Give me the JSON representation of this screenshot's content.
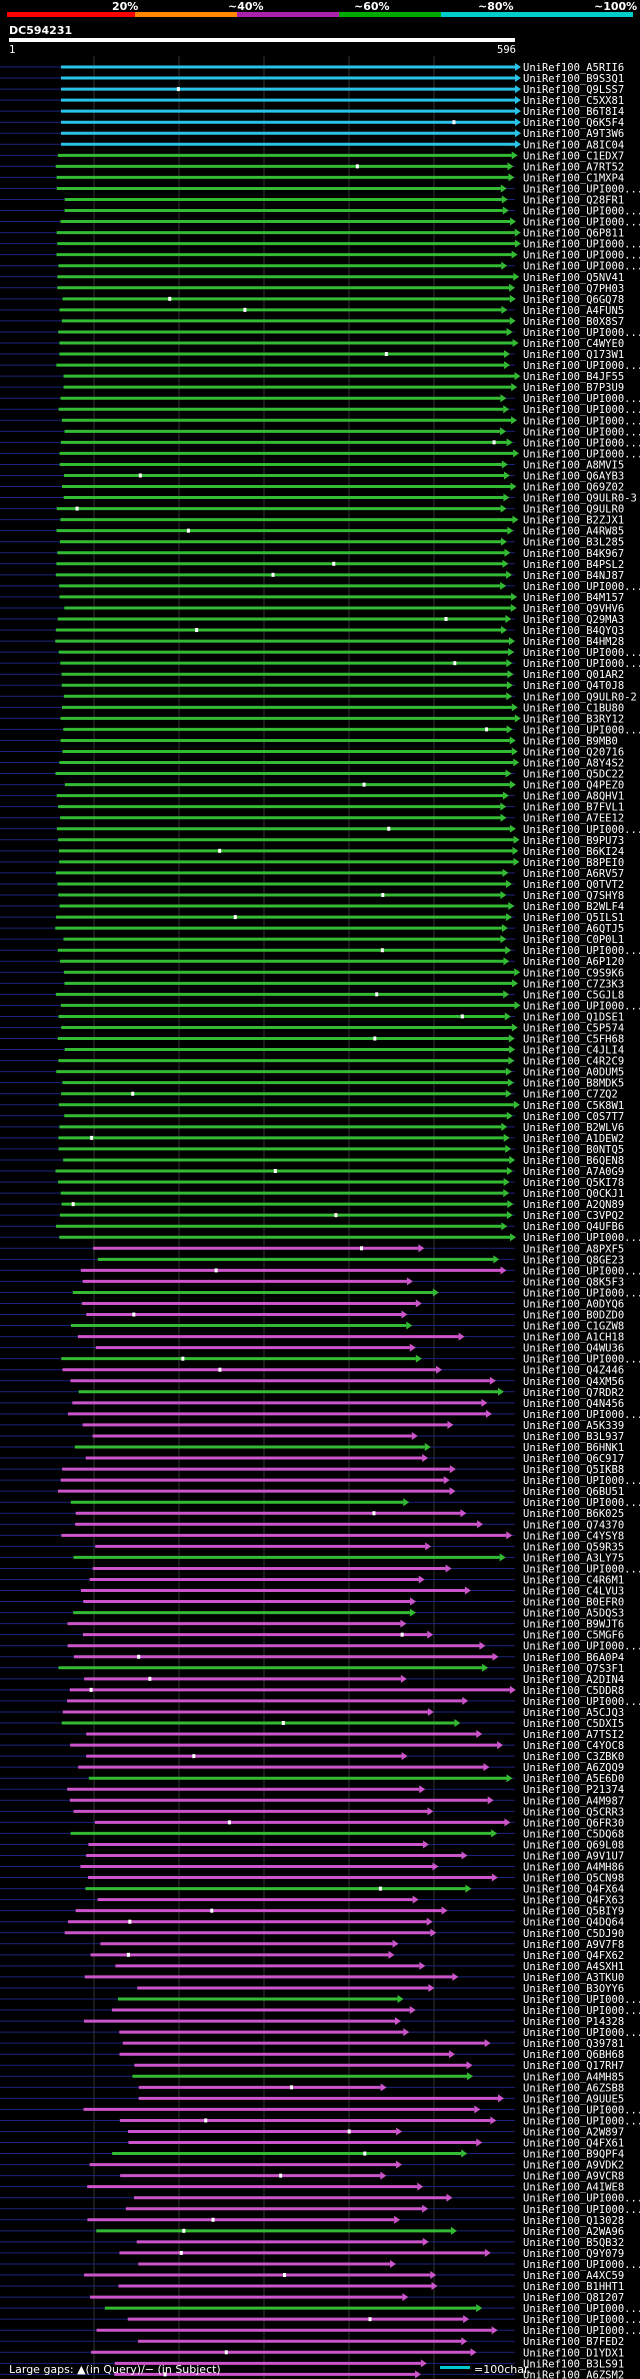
{
  "header": {
    "query_id": "DC594231",
    "start_label": "1",
    "end_label": "596"
  },
  "legend": {
    "thresholds": [
      "20%",
      "~40%",
      "~60%",
      "~80%",
      "~100%"
    ],
    "colors": [
      "#ff0000",
      "#ff8800",
      "#aa22aa",
      "#00aa00",
      "#00cccc"
    ]
  },
  "footer": {
    "gaps_text": "Large gaps: ▲(in Query)/− (in Subject)",
    "scale_text": "=100char."
  },
  "chart_data": {
    "type": "alignment",
    "title": "DC594231",
    "query_length": 596,
    "x_range": [
      1,
      596
    ],
    "categories": [
      "UniRef100_A5RII6",
      "UniRef100_B9S3Q1",
      "UniRef100_Q9LSS7",
      "UniRef100_C5XX81",
      "UniRef100_B6T8I4",
      "UniRef100_Q6K5F4",
      "UniRef100_A9T3W6",
      "UniRef100_A8IC04",
      "UniRef100_C1EDX7",
      "UniRef100_A7RT52",
      "UniRef100_C1MXP4",
      "UniRef100_UPI000...",
      "UniRef100_Q28FR1",
      "UniRef100_UPI000...",
      "UniRef100_UPI000...",
      "UniRef100_Q6P811",
      "UniRef100_UPI000...",
      "UniRef100_UPI000...",
      "UniRef100_UPI000...",
      "UniRef100_Q5NV41",
      "UniRef100_Q7PH03",
      "UniRef100_Q6GQ78",
      "UniRef100_A4FUN5",
      "UniRef100_B0X8S7",
      "UniRef100_UPI000...",
      "UniRef100_C4WYE0",
      "UniRef100_Q173W1",
      "UniRef100_UPI000...",
      "UniRef100_B4JF55",
      "UniRef100_B7P3U9",
      "UniRef100_UPI000...",
      "UniRef100_UPI000...",
      "UniRef100_UPI000...",
      "UniRef100_UPI000...",
      "UniRef100_UPI000...",
      "UniRef100_UPI000...",
      "UniRef100_A8MVI5",
      "UniRef100_Q6AYB3",
      "UniRef100_Q69Z02",
      "UniRef100_Q9ULR0-3",
      "UniRef100_Q9ULR0",
      "UniRef100_B2ZJX1",
      "UniRef100_A4RW85",
      "UniRef100_B3L285",
      "UniRef100_B4K967",
      "UniRef100_B4PSL2",
      "UniRef100_B4NJ87",
      "UniRef100_UPI000...",
      "UniRef100_B4M157",
      "UniRef100_Q9VHV6",
      "UniRef100_Q29MA3",
      "UniRef100_B4QYQ3",
      "UniRef100_B4HM28",
      "UniRef100_UPI000...",
      "UniRef100_UPI000...",
      "UniRef100_Q01AR2",
      "UniRef100_Q4T0J8",
      "UniRef100_Q9ULR0-2",
      "UniRef100_C1BU80",
      "UniRef100_B3RY12",
      "UniRef100_UPI000...",
      "UniRef100_B9MB0",
      "UniRef100_Q20716",
      "UniRef100_A8Y4S2",
      "UniRef100_Q5DC22",
      "UniRef100_Q4PEZ0",
      "UniRef100_A8QHV1",
      "UniRef100_B7FVL1",
      "UniRef100_A7EE12",
      "UniRef100_UPI000...",
      "UniRef100_B9PU73",
      "UniRef100_B6KI24",
      "UniRef100_B8PEI0",
      "UniRef100_A6RV57",
      "UniRef100_Q0TVT2",
      "UniRef100_Q7SHY8",
      "UniRef100_B2WLF4",
      "UniRef100_Q5ILS1",
      "UniRef100_A6QTJ5",
      "UniRef100_C0P0L1",
      "UniRef100_UPI000...",
      "UniRef100_A6P120",
      "UniRef100_C9S9K6",
      "UniRef100_C7Z3K3",
      "UniRef100_C5GJL8",
      "UniRef100_UPI000...",
      "UniRef100_Q1DSE1",
      "UniRef100_C5P574",
      "UniRef100_C5FH68",
      "UniRef100_C4JLI4",
      "UniRef100_C4R2C9",
      "UniRef100_A0DUM5",
      "UniRef100_B8MDK5",
      "UniRef100_C7ZQ2",
      "UniRef100_C5K8W1",
      "UniRef100_C0S7T7",
      "UniRef100_B2WLV6",
      "UniRef100_A1DEW2",
      "UniRef100_B0NTQ5",
      "UniRef100_B6QEN8",
      "UniRef100_A7A0G9",
      "UniRef100_Q5KI78",
      "UniRef100_Q0CKJ1",
      "UniRef100_A2QN89",
      "UniRef100_C3VPQ2",
      "UniRef100_Q4UFB6",
      "UniRef100_UPI000...",
      "UniRef100_A8PXF5",
      "UniRef100_Q8GE23",
      "UniRef100_UPI000...",
      "UniRef100_Q8K5F3",
      "UniRef100_UPI000...",
      "UniRef100_A0DYQ6",
      "UniRef100_B0DZD0",
      "UniRef100_C1GZW8",
      "UniRef100_A1CH18",
      "UniRef100_Q4WU36",
      "UniRef100_UPI000...",
      "UniRef100_Q4Z446",
      "UniRef100_Q4XM56",
      "UniRef100_Q7RDR2",
      "UniRef100_Q4N456",
      "UniRef100_UPI000...",
      "UniRef100_A5K339",
      "UniRef100_B3L937",
      "UniRef100_B6HNK1",
      "UniRef100_Q6C917",
      "UniRef100_Q5IKB8",
      "UniRef100_UPI000...",
      "UniRef100_Q6BU51",
      "UniRef100_UPI000...",
      "UniRef100_B6K025",
      "UniRef100_Q74370",
      "UniRef100_C4YSY8",
      "UniRef100_Q59R35",
      "UniRef100_A3LY75",
      "UniRef100_UPI000...",
      "UniRef100_C4R6M1",
      "UniRef100_C4LVU3",
      "UniRef100_B0EFR0",
      "UniRef100_A5DQS3",
      "UniRef100_B9WJT6",
      "UniRef100_C5MGF6",
      "UniRef100_UPI000...",
      "UniRef100_B6A0P4",
      "UniRef100_Q7S3F1",
      "UniRef100_A2DIN4",
      "UniRef100_C5DDR8",
      "UniRef100_UPI000...",
      "UniRef100_A5CJQ3",
      "UniRef100_C5DXI5",
      "UniRef100_A7TSI2",
      "UniRef100_C4YOC8",
      "UniRef100_C3ZBK0",
      "UniRef100_A6ZQQ9",
      "UniRef100_A5E6D0",
      "UniRef100_P21374",
      "UniRef100_A4M987",
      "UniRef100_Q5CRR3",
      "UniRef100_Q6FR30",
      "UniRef100_C5DQ68",
      "UniRef100_Q69L08",
      "UniRef100_A9V1U7",
      "UniRef100_A4MH86",
      "UniRef100_Q5CN98",
      "UniRef100_Q4FX64",
      "UniRef100_Q4FX63",
      "UniRef100_Q5BIY9",
      "UniRef100_Q4DQ64",
      "UniRef100_C5DJ90",
      "UniRef100_A9V7F8",
      "UniRef100_Q4FX62",
      "UniRef100_A4SXH1",
      "UniRef100_A3TKU0",
      "UniRef100_B3OYY6",
      "UniRef100_UPI000...",
      "UniRef100_UPI000...",
      "UniRef100_P14328",
      "UniRef100_UPI000...",
      "UniRef100_Q39781",
      "UniRef100_Q6BH68",
      "UniRef100_Q17RH7",
      "UniRef100_A4MH85",
      "UniRef100_A6ZSB8",
      "UniRef100_A9UUE5",
      "UniRef100_UPI000...",
      "UniRef100_UPI000...",
      "UniRef100_A2W897",
      "UniRef100_Q4FX61",
      "UniRef100_B9QPF4",
      "UniRef100_A9VDK2",
      "UniRef100_A9VCR8",
      "UniRef100_A4IWE8",
      "UniRef100_UPI000...",
      "UniRef100_UPI000...",
      "UniRef100_Q13028",
      "UniRef100_A2WA96",
      "UniRef100_B5QB32",
      "UniRef100_Q9Y079",
      "UniRef100_UPI000...",
      "UniRef100_A4XC59",
      "UniRef100_B1HHT1",
      "UniRef100_Q8I207",
      "UniRef100_UPI000...",
      "UniRef100_UPI000...",
      "UniRef100_UPI000...",
      "UniRef100_B7FED2",
      "UniRef100_D1YDX1",
      "UniRef100_B3LS91",
      "UniRef100_A6ZSM2"
    ]
  }
}
